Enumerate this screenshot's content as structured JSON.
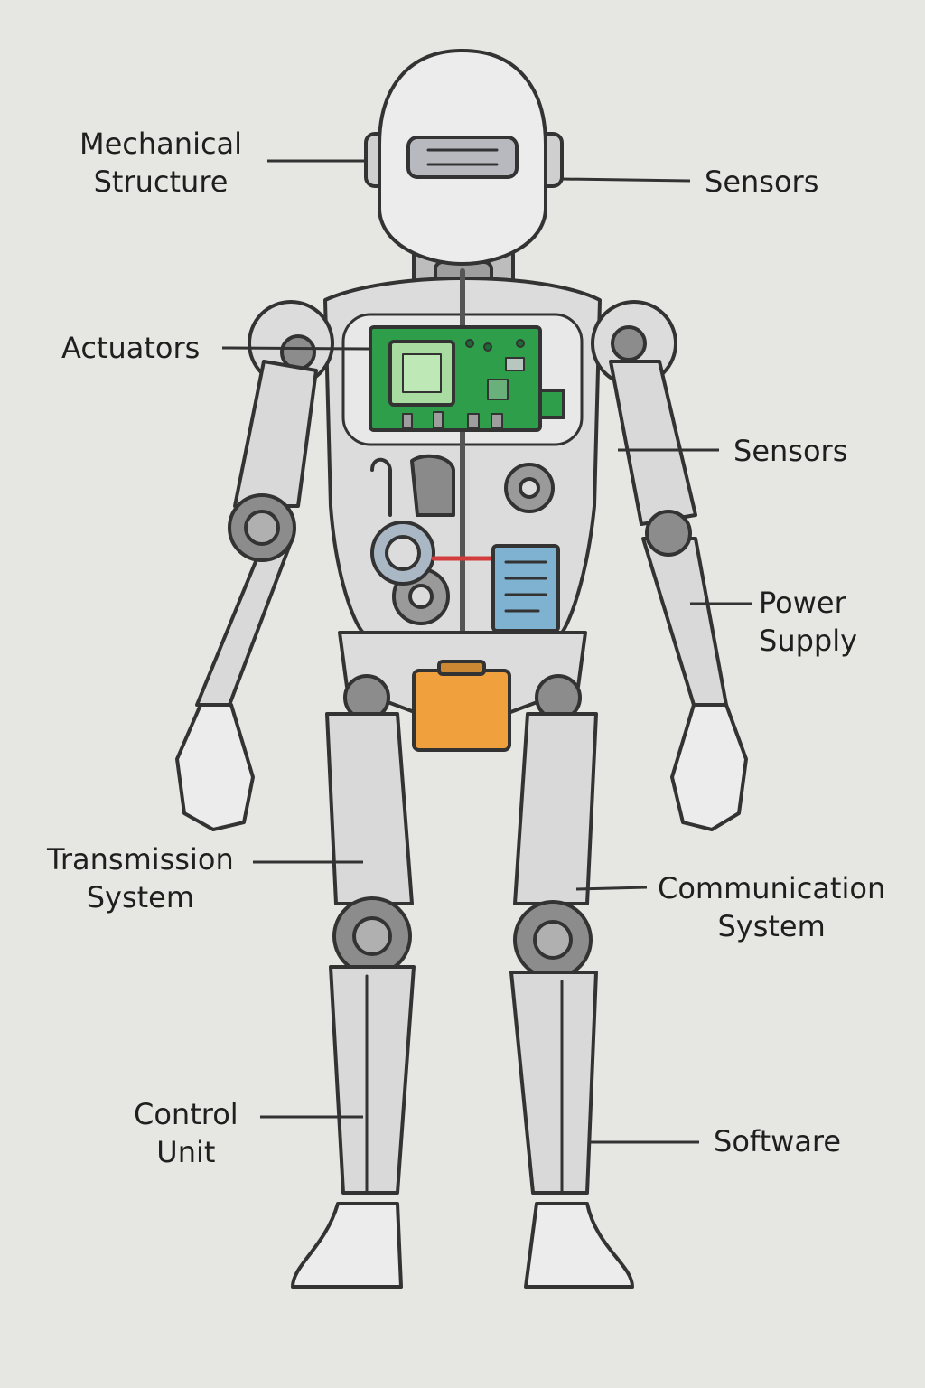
{
  "diagram": {
    "labels": {
      "mechanical_structure": {
        "line1": "Mechanical",
        "line2": "Structure"
      },
      "sensors_head": {
        "line1": "Sensors"
      },
      "actuators": {
        "line1": "Actuators"
      },
      "sensors_arm": {
        "line1": "Sensors"
      },
      "power_supply": {
        "line1": "Power",
        "line2": "Supply"
      },
      "transmission_system": {
        "line1": "Transmission",
        "line2": "System"
      },
      "communication_system": {
        "line1": "Communication",
        "line2": "System"
      },
      "control_unit": {
        "line1": "Control",
        "line2": "Unit"
      },
      "software": {
        "line1": "Software"
      }
    },
    "colors": {
      "background": "#e6e6e2",
      "body": "#d9d9d9",
      "outline": "#333333",
      "joint": "#8c8c8c",
      "circuit_board": "#2f9e4a",
      "battery": "#f0a03c",
      "module": "#7fb2d0"
    }
  }
}
